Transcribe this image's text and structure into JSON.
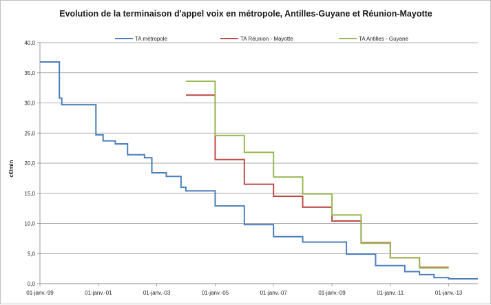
{
  "chart_data": {
    "type": "line",
    "step": true,
    "title": "Evolution de la terminaison d'appel voix en métropole, Antilles-Guyane et Réunion-Mayotte",
    "ylabel": "c€/min",
    "xlabel": "",
    "ylim": [
      0,
      40
    ],
    "yticks": [
      "0,0",
      "5,0",
      "10,0",
      "15,0",
      "20,0",
      "25,0",
      "30,0",
      "35,0",
      "40,0"
    ],
    "xlim": [
      "1999-01-01",
      "2014-01-01"
    ],
    "xticks": [
      {
        "date": "1999-01-01",
        "label": "01-janv.-99"
      },
      {
        "date": "2001-01-01",
        "label": "01-janv.-01"
      },
      {
        "date": "2003-01-01",
        "label": "01-janv.-03"
      },
      {
        "date": "2005-01-01",
        "label": "01-janv.-05"
      },
      {
        "date": "2007-01-01",
        "label": "01-janv.-07"
      },
      {
        "date": "2009-01-01",
        "label": "01-janv.-09"
      },
      {
        "date": "2011-01-01",
        "label": "01-janv.-11"
      },
      {
        "date": "2013-01-01",
        "label": "01-janv.-13"
      }
    ],
    "grid": "horizontal",
    "legend_position": "top",
    "series": [
      {
        "name": "TA métropole",
        "color": "#4a7ebb",
        "points": [
          {
            "x": "1999-01-01",
            "y": 36.8
          },
          {
            "x": "1999-09-01",
            "y": 30.8
          },
          {
            "x": "1999-10-01",
            "y": 29.7
          },
          {
            "x": "2000-12-01",
            "y": 24.7
          },
          {
            "x": "2001-03-01",
            "y": 23.7
          },
          {
            "x": "2001-08-01",
            "y": 23.2
          },
          {
            "x": "2002-01-01",
            "y": 21.4
          },
          {
            "x": "2002-08-01",
            "y": 20.9
          },
          {
            "x": "2002-11-01",
            "y": 18.4
          },
          {
            "x": "2003-05-01",
            "y": 17.8
          },
          {
            "x": "2003-11-01",
            "y": 16.0
          },
          {
            "x": "2004-01-01",
            "y": 15.4
          },
          {
            "x": "2005-01-01",
            "y": 12.9
          },
          {
            "x": "2006-01-01",
            "y": 9.8
          },
          {
            "x": "2007-01-01",
            "y": 7.8
          },
          {
            "x": "2008-01-01",
            "y": 6.9
          },
          {
            "x": "2009-07-01",
            "y": 4.9
          },
          {
            "x": "2010-07-01",
            "y": 3.0
          },
          {
            "x": "2011-07-01",
            "y": 2.0
          },
          {
            "x": "2012-01-01",
            "y": 1.5
          },
          {
            "x": "2012-07-01",
            "y": 1.0
          },
          {
            "x": "2013-01-01",
            "y": 0.8
          },
          {
            "x": "2014-01-01",
            "y": 0.8
          }
        ]
      },
      {
        "name": "TA Réunion - Mayotte",
        "color": "#be4b48",
        "points": [
          {
            "x": "2004-01-01",
            "y": 31.3
          },
          {
            "x": "2005-01-01",
            "y": 20.6
          },
          {
            "x": "2006-01-01",
            "y": 16.5
          },
          {
            "x": "2007-01-01",
            "y": 14.5
          },
          {
            "x": "2008-01-01",
            "y": 12.7
          },
          {
            "x": "2009-01-01",
            "y": 10.4
          },
          {
            "x": "2010-01-01",
            "y": 6.8
          },
          {
            "x": "2011-01-01",
            "y": 4.3
          },
          {
            "x": "2012-01-01",
            "y": 2.7
          },
          {
            "x": "2013-01-01",
            "y": 2.7
          }
        ]
      },
      {
        "name": "TA Antilles - Guyane",
        "color": "#98b954",
        "points": [
          {
            "x": "2004-01-01",
            "y": 33.6
          },
          {
            "x": "2005-01-01",
            "y": 24.6
          },
          {
            "x": "2006-01-01",
            "y": 21.8
          },
          {
            "x": "2007-01-01",
            "y": 17.7
          },
          {
            "x": "2008-01-01",
            "y": 14.9
          },
          {
            "x": "2009-01-01",
            "y": 11.4
          },
          {
            "x": "2010-01-01",
            "y": 6.7
          },
          {
            "x": "2011-01-01",
            "y": 4.3
          },
          {
            "x": "2012-01-01",
            "y": 2.6
          },
          {
            "x": "2013-01-01",
            "y": 2.6
          }
        ]
      }
    ]
  }
}
